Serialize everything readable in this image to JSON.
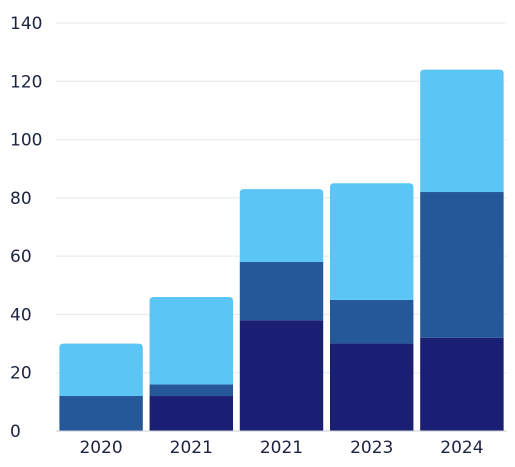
{
  "chart_data": {
    "type": "bar",
    "stacked": true,
    "categories": [
      "2020",
      "2021",
      "2021",
      "2023",
      "2024"
    ],
    "series": [
      {
        "color": "#1b1f73",
        "values": [
          0,
          12,
          38,
          30,
          32
        ]
      },
      {
        "color": "#245899",
        "values": [
          12,
          4,
          20,
          15,
          50
        ]
      },
      {
        "color": "#5bc5f5",
        "values": [
          18,
          30,
          25,
          40,
          42
        ]
      }
    ],
    "yticks": [
      0,
      20,
      40,
      60,
      80,
      100,
      120,
      140
    ],
    "ylim": [
      0,
      140
    ],
    "grid": true,
    "title": "",
    "xlabel": "",
    "ylabel": ""
  }
}
